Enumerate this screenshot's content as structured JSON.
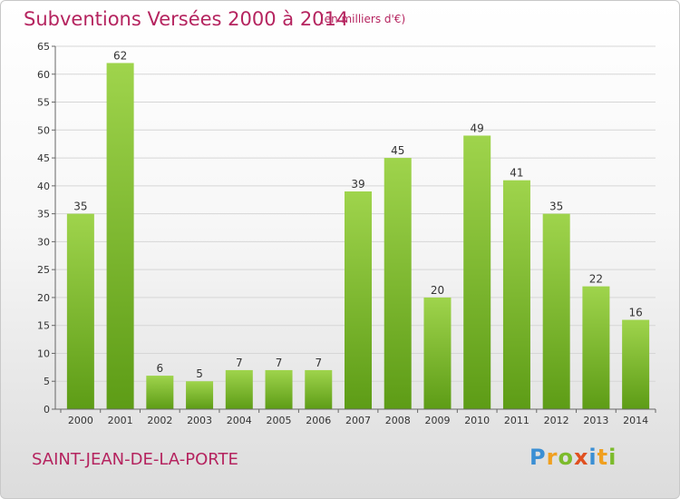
{
  "header": {
    "title": "Subventions Versées 2000 à 2014",
    "subtitle": "(en milliers d'€)"
  },
  "footer": {
    "commune": "SAINT-JEAN-DE-LA-PORTE",
    "logo_text": "Proxiti"
  },
  "colors": {
    "title": "#b5245f",
    "bar_top": "#9fd44c",
    "bar_bottom": "#5d9c16"
  },
  "chart_data": {
    "type": "bar",
    "title": "Subventions Versées 2000 à 2014",
    "subtitle": "(en milliers d'€)",
    "categories": [
      "2000",
      "2001",
      "2002",
      "2003",
      "2004",
      "2005",
      "2006",
      "2007",
      "2008",
      "2009",
      "2010",
      "2011",
      "2012",
      "2013",
      "2014"
    ],
    "values": [
      35,
      62,
      6,
      5,
      7,
      7,
      7,
      39,
      45,
      20,
      49,
      41,
      35,
      22,
      16
    ],
    "ylim": [
      0,
      65
    ],
    "yticks": [
      0,
      5,
      10,
      15,
      20,
      25,
      30,
      35,
      40,
      45,
      50,
      55,
      60,
      65
    ],
    "grid": true,
    "data_labels": true
  }
}
